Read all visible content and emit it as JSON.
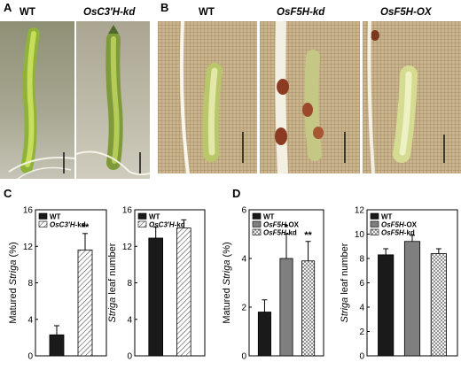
{
  "panels": {
    "A": {
      "letter": "A",
      "titles": [
        "WT",
        "OsC3′H-kd"
      ]
    },
    "B": {
      "letter": "B",
      "titles": [
        "WT",
        "OsF5H-kd",
        "OsF5H-OX"
      ]
    },
    "C": {
      "letter": "C"
    },
    "D": {
      "letter": "D"
    }
  },
  "chart_data": [
    {
      "id": "C-left",
      "type": "bar",
      "ylabel": "Matured Striga (%)",
      "ylim": [
        0,
        16
      ],
      "yticks": [
        0,
        4,
        8,
        12,
        16
      ],
      "series": [
        {
          "name": "WT",
          "values": [
            2.3
          ],
          "error": [
            1.0
          ],
          "pattern": "solid"
        },
        {
          "name": "OsC3′H-kd",
          "values": [
            11.6
          ],
          "error": [
            1.8
          ],
          "pattern": "hatch",
          "annotation": "**"
        }
      ],
      "legend_position": "top-left"
    },
    {
      "id": "C-right",
      "type": "bar",
      "ylabel": "Striga leaf number",
      "ylim": [
        0,
        16
      ],
      "yticks": [
        0,
        4,
        8,
        12,
        16
      ],
      "series": [
        {
          "name": "WT",
          "values": [
            12.9
          ],
          "error": [
            1.2
          ],
          "pattern": "solid"
        },
        {
          "name": "OsC3′H-kd",
          "values": [
            14.0
          ],
          "error": [
            0.9
          ],
          "pattern": "hatch"
        }
      ],
      "legend_position": "top-left"
    },
    {
      "id": "D-left",
      "type": "bar",
      "ylabel": "Matured Striga (%)",
      "ylim": [
        0,
        6
      ],
      "yticks": [
        0,
        2,
        4,
        6
      ],
      "series": [
        {
          "name": "WT",
          "values": [
            1.8
          ],
          "error": [
            0.5
          ],
          "pattern": "solid"
        },
        {
          "name": "OsF5H-OX",
          "values": [
            4.0
          ],
          "error": [
            1.0
          ],
          "pattern": "gray",
          "annotation": "*"
        },
        {
          "name": "OsF5H-kd",
          "values": [
            3.9
          ],
          "error": [
            0.8
          ],
          "pattern": "crosshatch",
          "annotation": "**"
        }
      ],
      "legend_position": "top-left"
    },
    {
      "id": "D-right",
      "type": "bar",
      "ylabel": "Striga leaf number",
      "ylim": [
        0,
        12
      ],
      "yticks": [
        0,
        2,
        4,
        6,
        8,
        10,
        12
      ],
      "series": [
        {
          "name": "WT",
          "values": [
            8.3
          ],
          "error": [
            0.5
          ],
          "pattern": "solid"
        },
        {
          "name": "OsF5H-OX",
          "values": [
            9.4
          ],
          "error": [
            0.5
          ],
          "pattern": "gray"
        },
        {
          "name": "OsF5H-kd",
          "values": [
            8.4
          ],
          "error": [
            0.4
          ],
          "pattern": "crosshatch"
        }
      ],
      "legend_position": "top-left"
    }
  ],
  "colors": {
    "solid": "#1a1a1a",
    "gray": "#7f7f7f",
    "hatch_line": "#333333"
  }
}
